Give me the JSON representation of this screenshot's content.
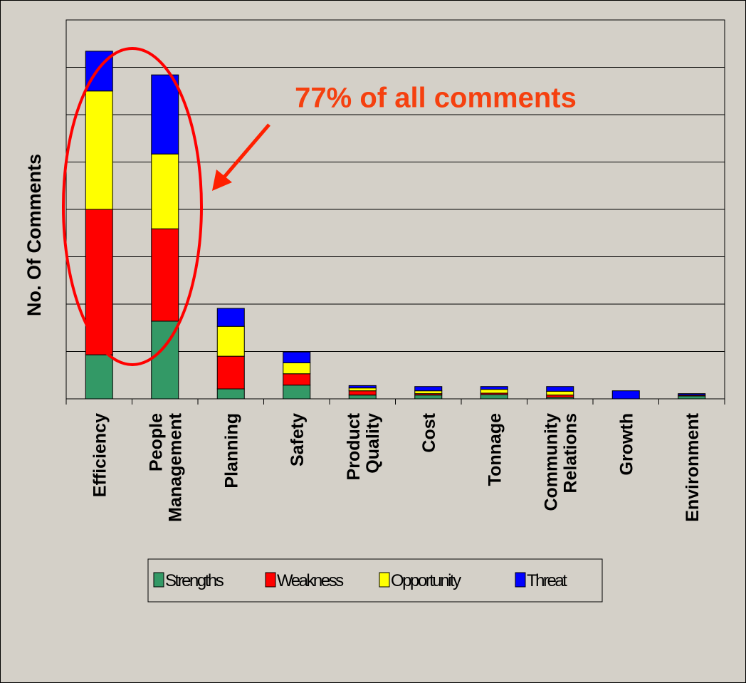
{
  "chart_data": {
    "type": "stacked_bar",
    "ylabel": "No. Of Comments",
    "annotation": "77% of all comments",
    "categories": [
      "Efficiency",
      "People Management",
      "Planning",
      "Safety",
      "Product Quality",
      "Cost",
      "Tonnage",
      "Community Relations",
      "Growth",
      "Environment"
    ],
    "series": [
      {
        "name": "Strengths",
        "color": "#339966",
        "values": [
          0.93,
          1.64,
          0.21,
          0.29,
          0.08,
          0.08,
          0.09,
          0.03,
          0,
          0.06
        ]
      },
      {
        "name": "Weakness",
        "color": "#ff0000",
        "values": [
          3.07,
          1.95,
          0.69,
          0.24,
          0.09,
          0.03,
          0.03,
          0.05,
          0,
          0.02
        ]
      },
      {
        "name": "Opportunity",
        "color": "#ffff00",
        "values": [
          2.5,
          1.58,
          0.63,
          0.23,
          0.06,
          0.06,
          0.08,
          0.08,
          0,
          0
        ]
      },
      {
        "name": "Threat",
        "color": "#0000ff",
        "values": [
          0.84,
          1.67,
          0.38,
          0.23,
          0.05,
          0.09,
          0.06,
          0.1,
          0.17,
          0.03
        ]
      }
    ],
    "ylim": [
      0,
      8
    ],
    "yticks": [
      0,
      1,
      2,
      3,
      4,
      5,
      6,
      7,
      8
    ],
    "grid": true,
    "legend": "bottom"
  }
}
